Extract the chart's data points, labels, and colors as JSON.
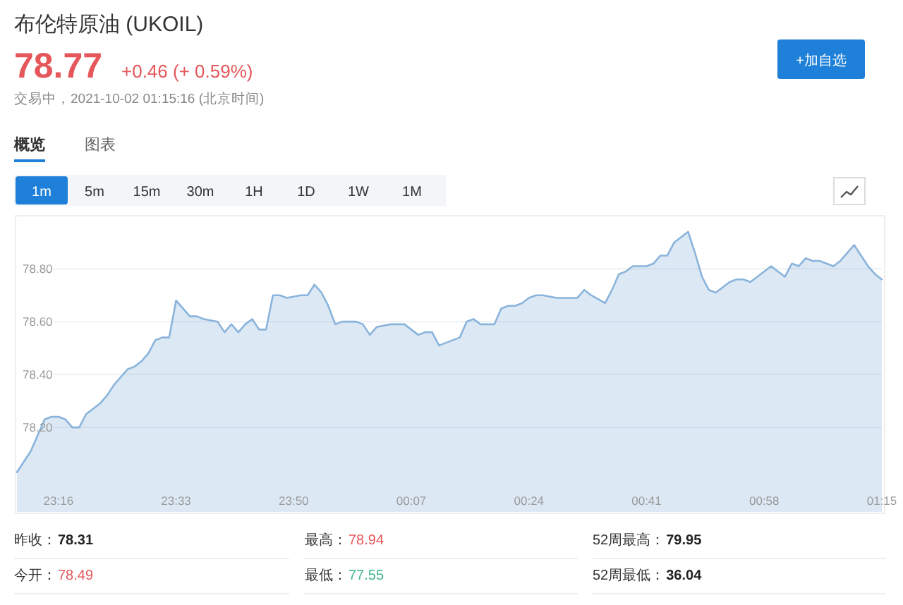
{
  "chart_data": {
    "type": "area",
    "title": "布伦特原油 (UKOIL)",
    "subtitle": "交易中，2021-10-02 01:15:16 (北京时间)",
    "annotations": [
      "78.77",
      "+0.46 (+ 0.59%)",
      "+加自选",
      "概览",
      "图表",
      "1m",
      "5m",
      "15m",
      "30m",
      "1H",
      "1D",
      "1W",
      "1M",
      "昨收：",
      "78.31",
      "最高：",
      "78.94",
      "52周最高：",
      "79.95",
      "今开：",
      "78.49",
      "最低：",
      "77.55",
      "52周最低：",
      "36.04"
    ],
    "x": [
      "2021-10-01T23:10",
      "2021-10-01T23:12",
      "2021-10-01T23:14",
      "2021-10-01T23:15",
      "2021-10-01T23:16",
      "2021-10-01T23:17",
      "2021-10-01T23:18",
      "2021-10-01T23:19",
      "2021-10-01T23:20",
      "2021-10-01T23:21",
      "2021-10-01T23:22",
      "2021-10-01T23:23",
      "2021-10-01T23:24",
      "2021-10-01T23:25",
      "2021-10-01T23:26",
      "2021-10-01T23:27",
      "2021-10-01T23:28",
      "2021-10-01T23:29",
      "2021-10-01T23:30",
      "2021-10-01T23:31",
      "2021-10-01T23:32",
      "2021-10-01T23:33",
      "2021-10-01T23:34",
      "2021-10-01T23:35",
      "2021-10-01T23:36",
      "2021-10-01T23:37",
      "2021-10-01T23:39",
      "2021-10-01T23:40",
      "2021-10-01T23:41",
      "2021-10-01T23:42",
      "2021-10-01T23:43",
      "2021-10-01T23:44",
      "2021-10-01T23:45",
      "2021-10-01T23:46",
      "2021-10-01T23:47",
      "2021-10-01T23:48",
      "2021-10-01T23:49",
      "2021-10-01T23:51",
      "2021-10-01T23:52",
      "2021-10-01T23:53",
      "2021-10-01T23:54",
      "2021-10-01T23:55",
      "2021-10-01T23:56",
      "2021-10-01T23:57",
      "2021-10-01T23:59",
      "2021-10-02T00:00",
      "2021-10-02T00:01",
      "2021-10-02T00:02",
      "2021-10-02T00:04",
      "2021-10-02T00:06",
      "2021-10-02T00:07",
      "2021-10-02T00:08",
      "2021-10-02T00:09",
      "2021-10-02T00:10",
      "2021-10-02T00:11",
      "2021-10-02T00:13",
      "2021-10-02T00:14",
      "2021-10-02T00:15",
      "2021-10-02T00:16",
      "2021-10-02T00:17",
      "2021-10-02T00:18",
      "2021-10-02T00:19",
      "2021-10-02T00:20",
      "2021-10-02T00:21",
      "2021-10-02T00:22",
      "2021-10-02T00:23",
      "2021-10-02T00:24",
      "2021-10-02T00:25",
      "2021-10-02T00:26",
      "2021-10-02T00:28",
      "2021-10-02T00:29",
      "2021-10-02T00:31",
      "2021-10-02T00:32",
      "2021-10-02T00:33",
      "2021-10-02T00:35",
      "2021-10-02T00:36",
      "2021-10-02T00:37",
      "2021-10-02T00:38",
      "2021-10-02T00:39",
      "2021-10-02T00:40",
      "2021-10-02T00:41",
      "2021-10-02T00:42",
      "2021-10-02T00:43",
      "2021-10-02T00:44",
      "2021-10-02T00:45",
      "2021-10-02T00:47",
      "2021-10-02T00:48",
      "2021-10-02T00:49",
      "2021-10-02T00:50",
      "2021-10-02T00:51",
      "2021-10-02T00:52",
      "2021-10-02T00:53",
      "2021-10-02T00:54",
      "2021-10-02T00:55",
      "2021-10-02T00:56",
      "2021-10-02T00:57",
      "2021-10-02T00:59",
      "2021-10-02T01:00",
      "2021-10-02T01:01",
      "2021-10-02T01:02",
      "2021-10-02T01:03",
      "2021-10-02T01:04",
      "2021-10-02T01:05",
      "2021-10-02T01:06",
      "2021-10-02T01:07",
      "2021-10-02T01:08",
      "2021-10-02T01:09",
      "2021-10-02T01:10",
      "2021-10-02T01:11",
      "2021-10-02T01:12",
      "2021-10-02T01:13",
      "2021-10-02T01:14",
      "2021-10-02T01:15"
    ],
    "values": [
      78.03,
      78.11,
      78.23,
      78.24,
      78.24,
      78.23,
      78.2,
      78.2,
      78.25,
      78.27,
      78.29,
      78.32,
      78.36,
      78.39,
      78.42,
      78.43,
      78.45,
      78.48,
      78.53,
      78.54,
      78.54,
      78.68,
      78.65,
      78.62,
      78.62,
      78.61,
      78.6,
      78.56,
      78.59,
      78.56,
      78.59,
      78.61,
      78.57,
      78.57,
      78.7,
      78.7,
      78.69,
      78.7,
      78.7,
      78.74,
      78.71,
      78.66,
      78.59,
      78.6,
      78.6,
      78.59,
      78.55,
      78.58,
      78.59,
      78.59,
      78.57,
      78.55,
      78.56,
      78.56,
      78.51,
      78.53,
      78.54,
      78.6,
      78.61,
      78.59,
      78.59,
      78.59,
      78.65,
      78.66,
      78.66,
      78.67,
      78.69,
      78.7,
      78.7,
      78.69,
      78.69,
      78.69,
      78.72,
      78.7,
      78.67,
      78.72,
      78.78,
      78.79,
      78.81,
      78.81,
      78.81,
      78.82,
      78.85,
      78.85,
      78.9,
      78.94,
      78.86,
      78.77,
      78.72,
      78.71,
      78.73,
      78.75,
      78.76,
      78.76,
      78.75,
      78.77,
      78.81,
      78.79,
      78.77,
      78.82,
      78.81,
      78.84,
      78.83,
      78.83,
      78.82,
      78.81,
      78.83,
      78.86,
      78.89,
      78.85,
      78.81,
      78.78,
      78.76
    ],
    "color": "#8ab4dc",
    "xlim": [
      "2021-10-01T23:10",
      "2021-10-02T01:15"
    ],
    "xticks": [
      {
        "value": "2021-10-01T23:16",
        "label": "23:16"
      },
      {
        "value": "2021-10-01T23:33",
        "label": "23:33"
      },
      {
        "value": "2021-10-01T23:50",
        "label": "23:50"
      },
      {
        "value": "2021-10-02T00:07",
        "label": "00:07"
      },
      {
        "value": "2021-10-02T00:24",
        "label": "00:24"
      },
      {
        "value": "2021-10-02T00:41",
        "label": "00:41"
      },
      {
        "value": "2021-10-02T00:58",
        "label": "00:58"
      },
      {
        "value": "2021-10-02T01:15",
        "label": "01:15"
      }
    ],
    "ylim": [
      77.88,
      78.99
    ],
    "yticks": [
      {
        "value": 78.2,
        "label": "78.20"
      },
      {
        "value": 78.4,
        "label": "78.40"
      },
      {
        "value": 78.6,
        "label": "78.60"
      },
      {
        "value": 78.8,
        "label": "78.80"
      }
    ],
    "grid": "y"
  }
}
